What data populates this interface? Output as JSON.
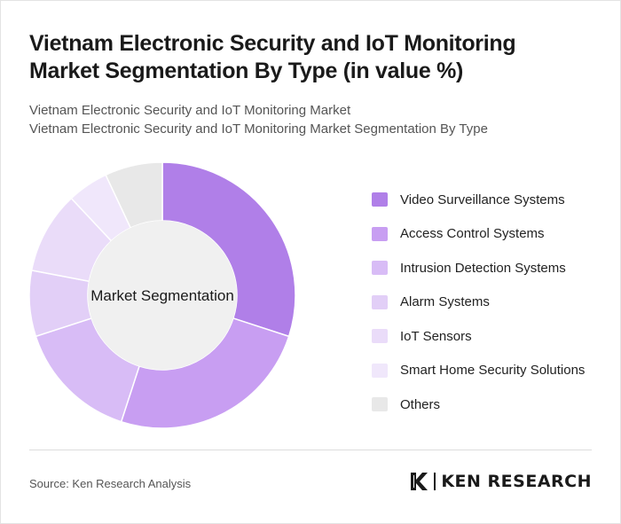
{
  "title": "Vietnam Electronic Security and IoT Monitoring Market Segmentation By Type (in value %)",
  "subtitle_1": "Vietnam Electronic Security and IoT Monitoring Market",
  "subtitle_2": "Vietnam Electronic Security and IoT Monitoring Market Segmentation By Type",
  "source": "Source: Ken Research Analysis",
  "brand": {
    "text": "KEN RESEARCH",
    "icon": "ken-research-logo-icon"
  },
  "colors": {
    "Video Surveillance Systems": "#b07fe8",
    "Access Control Systems": "#c89ef2",
    "Intrusion Detection Systems": "#d8bcf6",
    "Alarm Systems": "#e2cff7",
    "IoT Sensors": "#eadcf9",
    "Smart Home Security Solutions": "#f0e7fb",
    "Others": "#e8e8e8",
    "center": "#f0f0f0"
  },
  "chart_data": {
    "type": "pie",
    "variant": "donut",
    "center_label": "Market Segmentation",
    "categories": [
      "Video Surveillance Systems",
      "Access Control Systems",
      "Intrusion Detection Systems",
      "Alarm Systems",
      "IoT Sensors",
      "Smart Home Security Solutions",
      "Others"
    ],
    "values": [
      30,
      25,
      15,
      8,
      10,
      5,
      7
    ],
    "legend_position": "right"
  }
}
